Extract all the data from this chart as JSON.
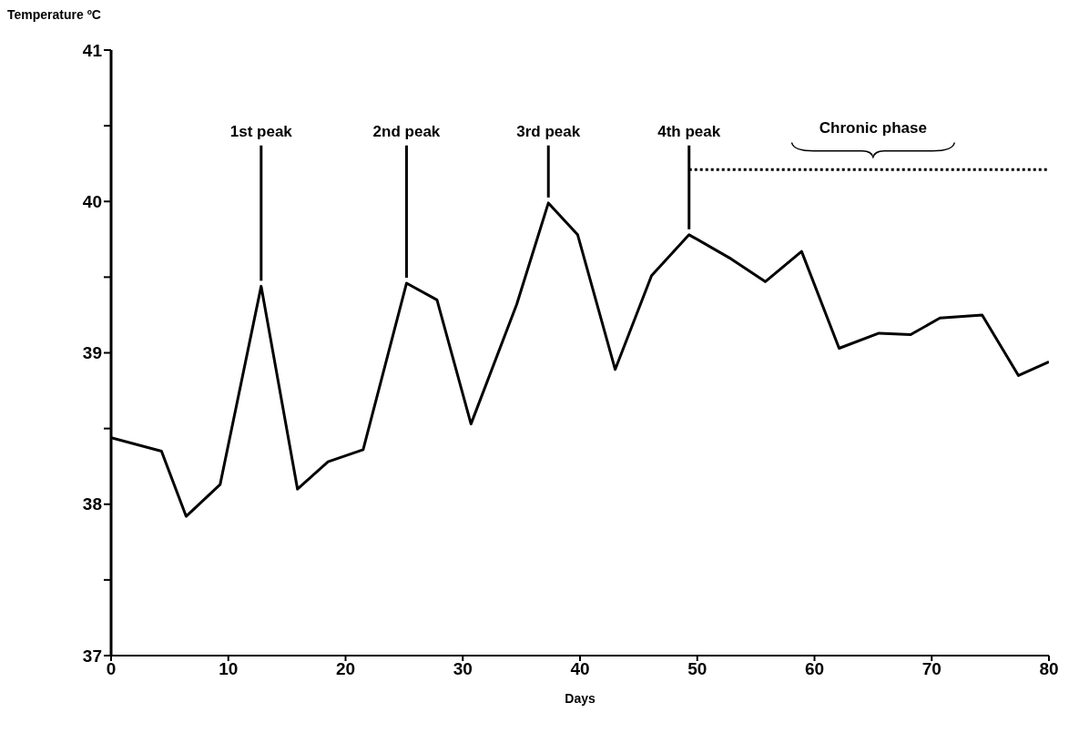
{
  "chart_data": {
    "type": "line",
    "ylabel": "Temperature ºC",
    "xlabel": "Days",
    "xlim": [
      0,
      80
    ],
    "xticks": [
      0,
      10,
      20,
      30,
      40,
      50,
      60,
      70,
      80
    ],
    "ylim": [
      37,
      41
    ],
    "yticks": [
      37,
      {
        "value": 37.5,
        "label": null
      },
      38,
      {
        "value": 38.5,
        "label": null
      },
      39,
      {
        "value": 39.5,
        "label": null
      },
      40,
      {
        "value": 40.5,
        "label": null
      },
      41
    ],
    "grid": false,
    "legend": false,
    "marker": "none",
    "line_style": "solid",
    "series": [
      {
        "color": "#000000",
        "x": [
          0,
          4.3,
          6.4,
          9.3,
          12.8,
          15.9,
          18.5,
          21.5,
          25.2,
          27.8,
          30.7,
          34.6,
          37.3,
          39.8,
          43.0,
          46.1,
          49.3,
          52.9,
          55.8,
          58.9,
          62.1,
          65.5,
          68.2,
          70.7,
          74.3,
          77.4,
          80
        ],
        "values": [
          38.44,
          38.35,
          37.92,
          38.13,
          39.44,
          38.1,
          38.28,
          38.36,
          39.46,
          39.35,
          38.53,
          39.32,
          39.99,
          39.78,
          38.89,
          39.51,
          39.78,
          39.62,
          39.47,
          39.67,
          39.03,
          39.13,
          39.12,
          39.23,
          39.25,
          38.85,
          38.94
        ]
      },
      {
        "color": "#000000",
        "line_style": "dotted",
        "x": [
          49.3,
          80
        ],
        "values": [
          40.21,
          40.21
        ]
      }
    ],
    "annotations": [
      {
        "text": "1st peak",
        "x": 12.8,
        "y": 39.44
      },
      {
        "text": "2nd peak",
        "x": 25.2,
        "y": 39.46
      },
      {
        "text": "3rd peak",
        "x": 37.3,
        "y": 39.99
      },
      {
        "text": "4th peak",
        "x": 49.3,
        "y": 39.78
      },
      {
        "text": "Chronic phase",
        "x": 65,
        "y": 40.21
      }
    ]
  }
}
